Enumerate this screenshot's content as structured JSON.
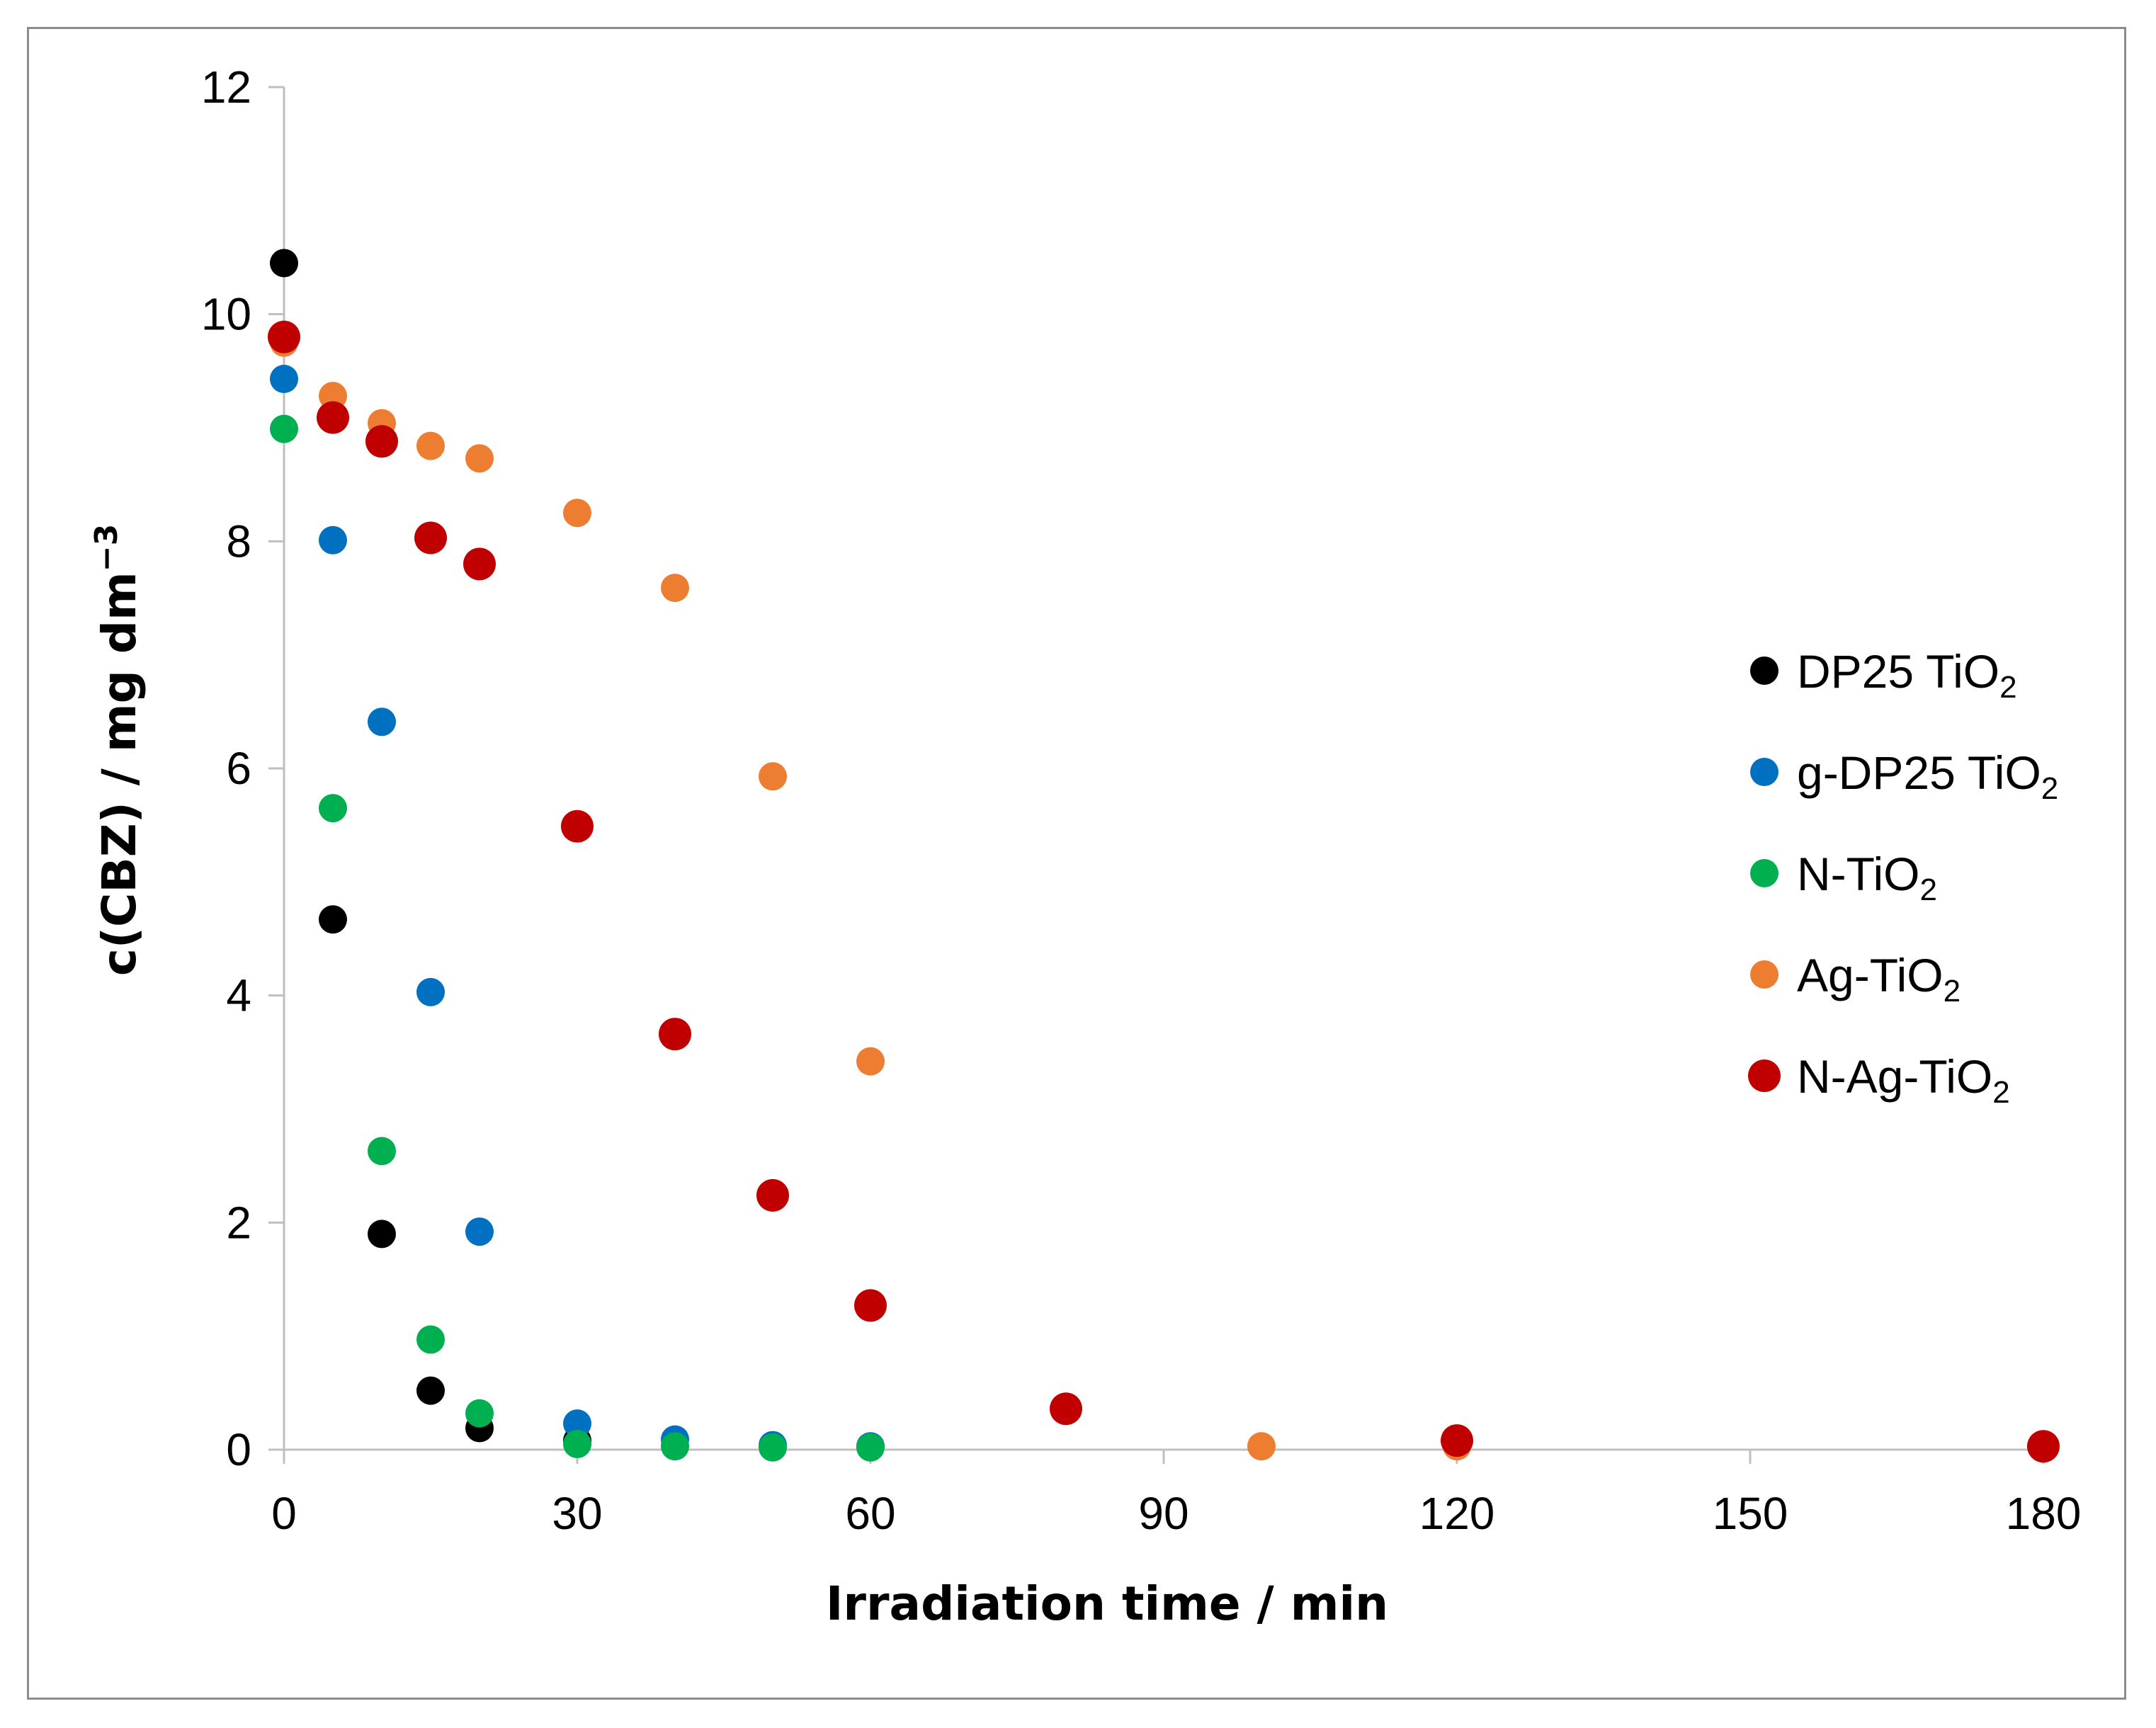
{
  "chart_data": {
    "type": "scatter",
    "title": "",
    "xlabel": "Irradiation time / min",
    "ylabel_main": "c(CBZ) / mg dm",
    "ylabel_sup": "−3",
    "xlim": [
      0,
      180
    ],
    "ylim": [
      0,
      12
    ],
    "xticks": [
      0,
      30,
      60,
      90,
      120,
      150,
      180
    ],
    "yticks": [
      0,
      2,
      4,
      6,
      8,
      10,
      12
    ],
    "grid": false,
    "legend_position": "right",
    "series": [
      {
        "name": "DP25 TiO₂",
        "legend_main": "DP25 TiO",
        "legend_sub": "2",
        "color": "#000000",
        "x": [
          0,
          5,
          10,
          15,
          20,
          30
        ],
        "y": [
          10.45,
          4.67,
          1.9,
          0.52,
          0.19,
          0.08
        ]
      },
      {
        "name": "g-DP25 TiO₂",
        "legend_main": "g-DP25 TiO",
        "legend_sub": "2",
        "color": "#0070c0",
        "x": [
          0,
          5,
          10,
          15,
          20,
          30,
          40,
          50,
          60
        ],
        "y": [
          9.43,
          8.01,
          6.41,
          4.03,
          1.92,
          0.23,
          0.09,
          0.04,
          0.03
        ]
      },
      {
        "name": "N-TiO₂",
        "legend_main": "N-TiO",
        "legend_sub": "2",
        "color": "#00b050",
        "x": [
          0,
          5,
          10,
          15,
          20,
          30,
          40,
          50,
          60
        ],
        "y": [
          8.99,
          5.65,
          2.63,
          0.97,
          0.32,
          0.05,
          0.03,
          0.02,
          0.02
        ]
      },
      {
        "name": "Ag-TiO₂",
        "legend_main": "Ag-TiO",
        "legend_sub": "2",
        "color": "#ed7d31",
        "x": [
          0,
          5,
          10,
          15,
          20,
          30,
          40,
          50,
          60,
          100,
          120
        ],
        "y": [
          9.75,
          9.28,
          9.04,
          8.84,
          8.73,
          8.25,
          7.59,
          5.93,
          3.42,
          0.03,
          0.03
        ]
      },
      {
        "name": "N-Ag-TiO₂",
        "legend_main": "N-Ag-TiO",
        "legend_sub": "2",
        "color": "#c00000",
        "x": [
          0,
          5,
          10,
          15,
          20,
          30,
          40,
          50,
          60,
          80,
          120,
          180
        ],
        "y": [
          9.8,
          9.09,
          8.88,
          8.03,
          7.8,
          5.49,
          3.66,
          2.24,
          1.27,
          0.36,
          0.08,
          0.03
        ]
      }
    ]
  }
}
